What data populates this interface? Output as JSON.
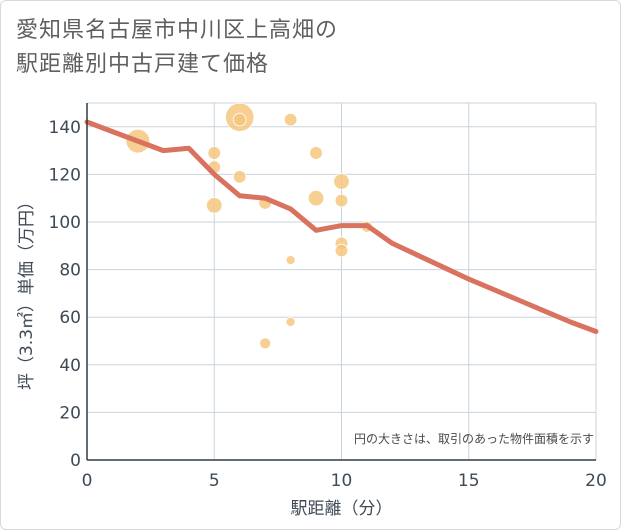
{
  "title_lines": [
    "愛知県名古屋市中川区上高畑の",
    "駅距離別中古戸建て価格"
  ],
  "colors": {
    "bubble": "#f5c57a",
    "line": "#d9735f",
    "grid": "#c9d3de",
    "plot_bg": "#ffffff"
  },
  "chart_data": {
    "type": "scatter",
    "title": "愛知県名古屋市中川区上高畑の駅距離別中古戸建て価格",
    "xlabel": "駅距離（分）",
    "ylabel": "坪（3.3㎡）単価（万円）",
    "xlim": [
      0,
      20
    ],
    "ylim": [
      0,
      150
    ],
    "x_ticks": [
      0,
      5,
      10,
      15,
      20
    ],
    "y_ticks": [
      0,
      20,
      40,
      60,
      80,
      100,
      120,
      140
    ],
    "note": "円の大きさは、取引のあった物件面積を示す",
    "bubbles": [
      {
        "x": 2,
        "y": 134,
        "size": 7
      },
      {
        "x": 5,
        "y": 129,
        "size": 2
      },
      {
        "x": 5,
        "y": 123,
        "size": 2
      },
      {
        "x": 5,
        "y": 107,
        "size": 3
      },
      {
        "x": 6,
        "y": 144,
        "size": 10
      },
      {
        "x": 6,
        "y": 143,
        "size": 2
      },
      {
        "x": 6,
        "y": 119,
        "size": 2
      },
      {
        "x": 7,
        "y": 108,
        "size": 2
      },
      {
        "x": 7,
        "y": 49,
        "size": 1.5
      },
      {
        "x": 8,
        "y": 143,
        "size": 2
      },
      {
        "x": 8,
        "y": 84,
        "size": 1
      },
      {
        "x": 8,
        "y": 58,
        "size": 1
      },
      {
        "x": 9,
        "y": 129,
        "size": 2
      },
      {
        "x": 9,
        "y": 110,
        "size": 3
      },
      {
        "x": 10,
        "y": 117,
        "size": 3
      },
      {
        "x": 10,
        "y": 109,
        "size": 2
      },
      {
        "x": 10,
        "y": 91,
        "size": 2
      },
      {
        "x": 10,
        "y": 88,
        "size": 2
      },
      {
        "x": 11,
        "y": 98,
        "size": 1.5
      }
    ],
    "trend": {
      "x": [
        0,
        1,
        2,
        3,
        4,
        5,
        6,
        7,
        8,
        9,
        10,
        11,
        12,
        13,
        14,
        15,
        16,
        17,
        18,
        19,
        20
      ],
      "y": [
        142,
        138,
        134,
        130,
        131,
        120,
        111,
        110,
        105.5,
        96.5,
        98.5,
        98.5,
        91,
        86,
        81,
        76,
        71.5,
        67,
        62.5,
        58,
        54
      ]
    }
  }
}
